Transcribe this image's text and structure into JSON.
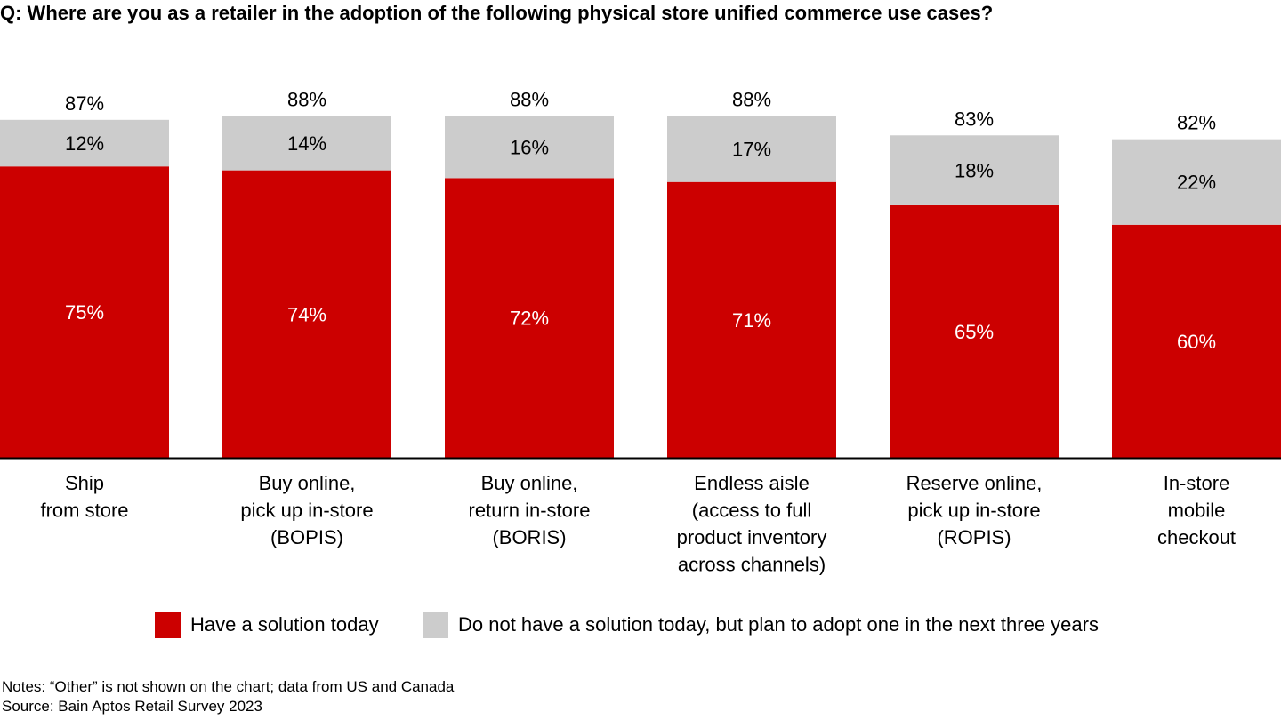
{
  "question": "Q: Where are you as a retailer in the adoption of the following physical store unified commerce use cases?",
  "colors": {
    "have": "#cc0000",
    "plan": "#cccccc"
  },
  "chart_data": {
    "type": "bar",
    "stacked": true,
    "categories": [
      [
        "Ship",
        "from store"
      ],
      [
        "Buy online,",
        "pick up in-store",
        "(BOPIS)"
      ],
      [
        "Buy online,",
        "return in-store",
        "(BORIS)"
      ],
      [
        "Endless aisle",
        "(access to full",
        "product inventory",
        "across channels)"
      ],
      [
        "Reserve online,",
        "pick up in-store",
        "(ROPIS)"
      ],
      [
        "In-store",
        "mobile",
        "checkout"
      ]
    ],
    "series": [
      {
        "name": "Have a solution today",
        "values": [
          75,
          74,
          72,
          71,
          65,
          60
        ],
        "labels": [
          "75%",
          "74%",
          "72%",
          "71%",
          "65%",
          "60%"
        ]
      },
      {
        "name": "Do not have a solution today, but plan to adopt one in the next three years",
        "values": [
          12,
          14,
          16,
          17,
          18,
          22
        ],
        "labels": [
          "12%",
          "14%",
          "16%",
          "17%",
          "18%",
          "22%"
        ]
      }
    ],
    "totals": [
      "87%",
      "88%",
      "88%",
      "88%",
      "83%",
      "82%"
    ],
    "ylim": [
      0,
      100
    ],
    "grid": false,
    "legend": "bottom"
  },
  "legend": {
    "have": "Have a solution today",
    "plan": "Do not have a solution today, but plan to adopt one in the next three years"
  },
  "notes": {
    "line1": "Notes: “Other” is not shown on the chart; data from US and Canada",
    "line2": "Source: Bain Aptos Retail Survey 2023"
  }
}
